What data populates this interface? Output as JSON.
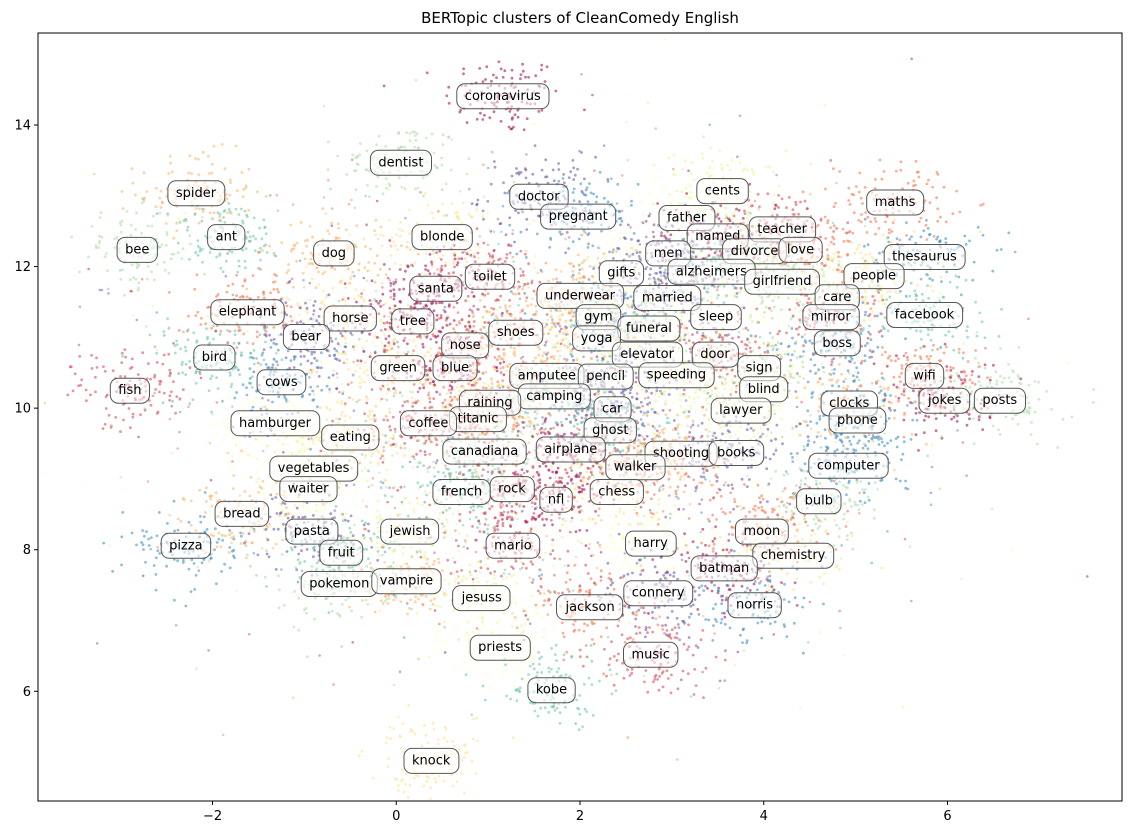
{
  "chart_data": {
    "type": "scatter",
    "title": "BERTopic clusters of CleanComedy English",
    "xlabel": "",
    "ylabel": "",
    "xlim": [
      -3.9,
      7.9
    ],
    "ylim": [
      4.45,
      15.3
    ],
    "x_ticks": [
      -2,
      0,
      2,
      4,
      6
    ],
    "y_ticks": [
      6,
      8,
      10,
      12,
      14
    ],
    "x_tick_labels": [
      "−2",
      "0",
      "2",
      "4",
      "6"
    ],
    "y_tick_labels": [
      "6",
      "8",
      "10",
      "12",
      "14"
    ],
    "grid": false,
    "legend": "none",
    "palette": [
      "#9e0142",
      "#d53e4f",
      "#f46d43",
      "#fdae61",
      "#fee08b",
      "#ffffbf",
      "#e6f598",
      "#abdda4",
      "#66c2a5",
      "#3288bd",
      "#5e4fa2"
    ],
    "topics": [
      {
        "label": "coronavirus",
        "x": 1.16,
        "y": 14.42
      },
      {
        "label": "dentist",
        "x": 0.05,
        "y": 13.48
      },
      {
        "label": "spider",
        "x": -2.18,
        "y": 13.05
      },
      {
        "label": "doctor",
        "x": 1.55,
        "y": 13.0
      },
      {
        "label": "cents",
        "x": 3.55,
        "y": 13.08
      },
      {
        "label": "maths",
        "x": 5.43,
        "y": 12.92
      },
      {
        "label": "pregnant",
        "x": 1.98,
        "y": 12.72
      },
      {
        "label": "father",
        "x": 3.16,
        "y": 12.7
      },
      {
        "label": "teacher",
        "x": 4.2,
        "y": 12.54
      },
      {
        "label": "ant",
        "x": -1.85,
        "y": 12.43
      },
      {
        "label": "blonde",
        "x": 0.5,
        "y": 12.43
      },
      {
        "label": "named",
        "x": 3.5,
        "y": 12.44
      },
      {
        "label": "bee",
        "x": -2.82,
        "y": 12.25
      },
      {
        "label": "dog",
        "x": -0.68,
        "y": 12.2
      },
      {
        "label": "men",
        "x": 2.96,
        "y": 12.2
      },
      {
        "label": "divorce",
        "x": 3.9,
        "y": 12.23
      },
      {
        "label": "love",
        "x": 4.4,
        "y": 12.25
      },
      {
        "label": "thesaurus",
        "x": 5.75,
        "y": 12.15
      },
      {
        "label": "gifts",
        "x": 2.45,
        "y": 11.92
      },
      {
        "label": "toilet",
        "x": 1.02,
        "y": 11.87
      },
      {
        "label": "alzheimers",
        "x": 3.43,
        "y": 11.94
      },
      {
        "label": "people",
        "x": 5.2,
        "y": 11.88
      },
      {
        "label": "santa",
        "x": 0.43,
        "y": 11.7
      },
      {
        "label": "girlfriend",
        "x": 4.2,
        "y": 11.8
      },
      {
        "label": "underwear",
        "x": 2.0,
        "y": 11.6
      },
      {
        "label": "married",
        "x": 2.95,
        "y": 11.57
      },
      {
        "label": "care",
        "x": 4.8,
        "y": 11.58
      },
      {
        "label": "elephant",
        "x": -1.62,
        "y": 11.37
      },
      {
        "label": "gym",
        "x": 2.2,
        "y": 11.3
      },
      {
        "label": "sleep",
        "x": 3.48,
        "y": 11.3
      },
      {
        "label": "mirror",
        "x": 4.73,
        "y": 11.3
      },
      {
        "label": "facebook",
        "x": 5.75,
        "y": 11.33
      },
      {
        "label": "horse",
        "x": -0.5,
        "y": 11.28
      },
      {
        "label": "tree",
        "x": 0.18,
        "y": 11.24
      },
      {
        "label": "funeral",
        "x": 2.75,
        "y": 11.14
      },
      {
        "label": "shoes",
        "x": 1.3,
        "y": 11.08
      },
      {
        "label": "bear",
        "x": -0.98,
        "y": 11.02
      },
      {
        "label": "yoga",
        "x": 2.18,
        "y": 11.0
      },
      {
        "label": "nose",
        "x": 0.75,
        "y": 10.9
      },
      {
        "label": "boss",
        "x": 4.8,
        "y": 10.93
      },
      {
        "label": "elevator",
        "x": 2.73,
        "y": 10.77
      },
      {
        "label": "door",
        "x": 3.47,
        "y": 10.77
      },
      {
        "label": "bird",
        "x": -1.98,
        "y": 10.73
      },
      {
        "label": "green",
        "x": 0.02,
        "y": 10.58
      },
      {
        "label": "blue",
        "x": 0.64,
        "y": 10.58
      },
      {
        "label": "sign",
        "x": 3.95,
        "y": 10.58
      },
      {
        "label": "amputee",
        "x": 1.64,
        "y": 10.47
      },
      {
        "label": "pencil",
        "x": 2.28,
        "y": 10.46
      },
      {
        "label": "speeding",
        "x": 3.05,
        "y": 10.48
      },
      {
        "label": "wifi",
        "x": 5.75,
        "y": 10.47
      },
      {
        "label": "cows",
        "x": -1.25,
        "y": 10.38
      },
      {
        "label": "blind",
        "x": 4.0,
        "y": 10.28
      },
      {
        "label": "fish",
        "x": -2.9,
        "y": 10.26
      },
      {
        "label": "camping",
        "x": 1.72,
        "y": 10.18
      },
      {
        "label": "raining",
        "x": 1.02,
        "y": 10.09
      },
      {
        "label": "jokes",
        "x": 5.97,
        "y": 10.12
      },
      {
        "label": "posts",
        "x": 6.57,
        "y": 10.12
      },
      {
        "label": "clocks",
        "x": 4.93,
        "y": 10.08
      },
      {
        "label": "car",
        "x": 2.35,
        "y": 10.0
      },
      {
        "label": "lawyer",
        "x": 3.75,
        "y": 9.98
      },
      {
        "label": "titanic",
        "x": 0.89,
        "y": 9.86
      },
      {
        "label": "phone",
        "x": 5.02,
        "y": 9.84
      },
      {
        "label": "hamburger",
        "x": -1.32,
        "y": 9.8
      },
      {
        "label": "coffee",
        "x": 0.35,
        "y": 9.8
      },
      {
        "label": "ghost",
        "x": 2.33,
        "y": 9.7
      },
      {
        "label": "eating",
        "x": -0.5,
        "y": 9.6
      },
      {
        "label": "airplane",
        "x": 1.9,
        "y": 9.43
      },
      {
        "label": "canadiana",
        "x": 0.96,
        "y": 9.4
      },
      {
        "label": "shooting",
        "x": 3.1,
        "y": 9.37
      },
      {
        "label": "books",
        "x": 3.7,
        "y": 9.38
      },
      {
        "label": "vegetables",
        "x": -0.9,
        "y": 9.16
      },
      {
        "label": "walker",
        "x": 2.6,
        "y": 9.18
      },
      {
        "label": "computer",
        "x": 4.92,
        "y": 9.2
      },
      {
        "label": "waiter",
        "x": -0.96,
        "y": 8.87
      },
      {
        "label": "rock",
        "x": 1.26,
        "y": 8.87
      },
      {
        "label": "french",
        "x": 0.71,
        "y": 8.83
      },
      {
        "label": "chess",
        "x": 2.4,
        "y": 8.83
      },
      {
        "label": "nfl",
        "x": 1.74,
        "y": 8.72
      },
      {
        "label": "bulb",
        "x": 4.6,
        "y": 8.7
      },
      {
        "label": "bread",
        "x": -1.68,
        "y": 8.52
      },
      {
        "label": "pasta",
        "x": -0.92,
        "y": 8.27
      },
      {
        "label": "jewish",
        "x": 0.15,
        "y": 8.27
      },
      {
        "label": "moon",
        "x": 3.98,
        "y": 8.27
      },
      {
        "label": "pizza",
        "x": -2.29,
        "y": 8.07
      },
      {
        "label": "harry",
        "x": 2.77,
        "y": 8.1
      },
      {
        "label": "mario",
        "x": 1.27,
        "y": 8.07
      },
      {
        "label": "fruit",
        "x": -0.6,
        "y": 7.97
      },
      {
        "label": "chemistry",
        "x": 4.32,
        "y": 7.93
      },
      {
        "label": "batman",
        "x": 3.57,
        "y": 7.75
      },
      {
        "label": "pokemon",
        "x": -0.62,
        "y": 7.53
      },
      {
        "label": "vampire",
        "x": 0.11,
        "y": 7.57
      },
      {
        "label": "connery",
        "x": 2.85,
        "y": 7.4
      },
      {
        "label": "jesuss",
        "x": 0.93,
        "y": 7.33
      },
      {
        "label": "jackson",
        "x": 2.11,
        "y": 7.2
      },
      {
        "label": "norris",
        "x": 3.9,
        "y": 7.23
      },
      {
        "label": "priests",
        "x": 1.13,
        "y": 6.63
      },
      {
        "label": "music",
        "x": 2.77,
        "y": 6.53
      },
      {
        "label": "kobe",
        "x": 1.69,
        "y": 6.03
      },
      {
        "label": "knock",
        "x": 0.38,
        "y": 5.03
      }
    ]
  }
}
